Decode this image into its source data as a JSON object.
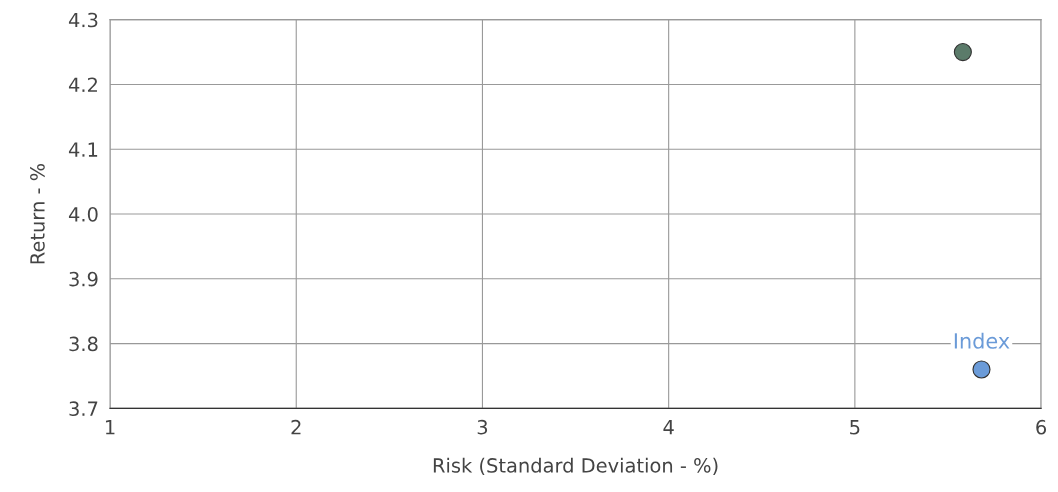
{
  "chart_data": {
    "type": "scatter",
    "xlabel": "Risk (Standard Deviation - %)",
    "ylabel": "Return - %",
    "series": [
      {
        "color": "#5b7b6a",
        "x": [
          5.58
        ],
        "values": [
          4.25
        ]
      },
      {
        "name": "Index",
        "color": "#6b9bd8",
        "x": [
          5.68
        ],
        "values": [
          3.76
        ]
      }
    ],
    "xlim": [
      1,
      6
    ],
    "xticks": [
      1,
      2,
      3,
      4,
      5,
      6
    ],
    "ylim": [
      3.7,
      4.3
    ],
    "yticks": [
      {
        "value": 3.7,
        "label": "3.7"
      },
      {
        "value": 3.8,
        "label": "3.8"
      },
      {
        "value": 3.9,
        "label": "3.9"
      },
      {
        "value": 4.0,
        "label": "4.0"
      },
      {
        "value": 4.1,
        "label": "4.1"
      },
      {
        "value": 4.2,
        "label": "4.2"
      },
      {
        "value": 4.3,
        "label": "4.3"
      }
    ],
    "grid": true,
    "marker": "circle",
    "legend": false
  }
}
